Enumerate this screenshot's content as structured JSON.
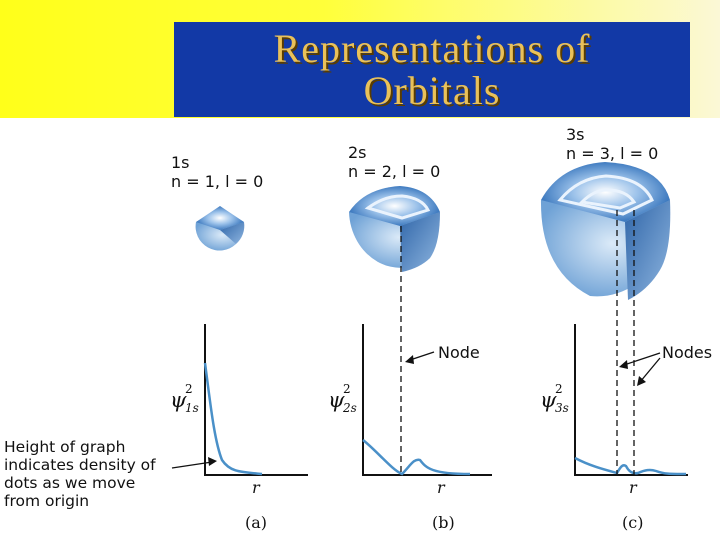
{
  "title": {
    "line1": "Representations of",
    "line2": "Orbitals"
  },
  "orbitals": [
    {
      "name": "1s",
      "quantum": "n = 1, l = 0",
      "psi": "ψ",
      "psi_sub": "1s",
      "psi_sup": "2",
      "caption": "(a)",
      "axis": "r"
    },
    {
      "name": "2s",
      "quantum": "n = 2, l = 0",
      "psi": "ψ",
      "psi_sub": "2s",
      "psi_sup": "2",
      "caption": "(b)",
      "axis": "r",
      "callout": "Node"
    },
    {
      "name": "3s",
      "quantum": "n = 3, l = 0",
      "psi": "ψ",
      "psi_sub": "3s",
      "psi_sup": "2",
      "caption": "(c)",
      "axis": "r",
      "callout": "Nodes"
    }
  ],
  "note": "Height of graph indicates density of dots as we move from origin",
  "colors": {
    "curve": "#4a90c8",
    "title_bg": "#1239a6",
    "title_text": "#e9c15a"
  }
}
